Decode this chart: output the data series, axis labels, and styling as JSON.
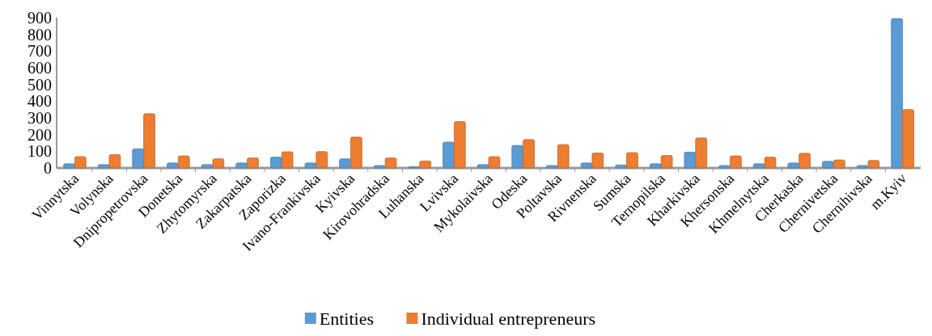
{
  "chart_data": {
    "type": "bar",
    "categories": [
      "Vinnytska",
      "Volynska",
      "Dnipropetrovska",
      "Donetska",
      "Zhytomyrska",
      "Zakarpatska",
      "Zaporizka",
      "Ivano-Frankivska",
      "Kyivska",
      "Kirovohradska",
      "Luhanska",
      "Lvivska",
      "Mykolaivska",
      "Odeska",
      "Poltavska",
      "Rivnenska",
      "Sumska",
      "Ternopilska",
      "Kharkivska",
      "Khersonska",
      "Khmelnytska",
      "Cherkaska",
      "Chernivetska",
      "Chernihivska",
      "m.Kyiv"
    ],
    "series": [
      {
        "name": "Entities",
        "color": "#5b9bd5",
        "values": [
          25,
          20,
          115,
          30,
          20,
          30,
          65,
          30,
          55,
          15,
          8,
          155,
          20,
          135,
          15,
          30,
          18,
          25,
          95,
          15,
          25,
          30,
          40,
          15,
          895
        ]
      },
      {
        "name": "Individual entrepreneurs",
        "color": "#ed7d31",
        "values": [
          68,
          80,
          325,
          72,
          55,
          60,
          97,
          98,
          185,
          60,
          42,
          278,
          68,
          170,
          140,
          90,
          92,
          75,
          180,
          72,
          65,
          88,
          48,
          45,
          350
        ]
      }
    ],
    "ylim": [
      0,
      900
    ],
    "yticks": [
      0,
      100,
      200,
      300,
      400,
      500,
      600,
      700,
      800,
      900
    ],
    "grid": false,
    "legend": "bottom"
  }
}
